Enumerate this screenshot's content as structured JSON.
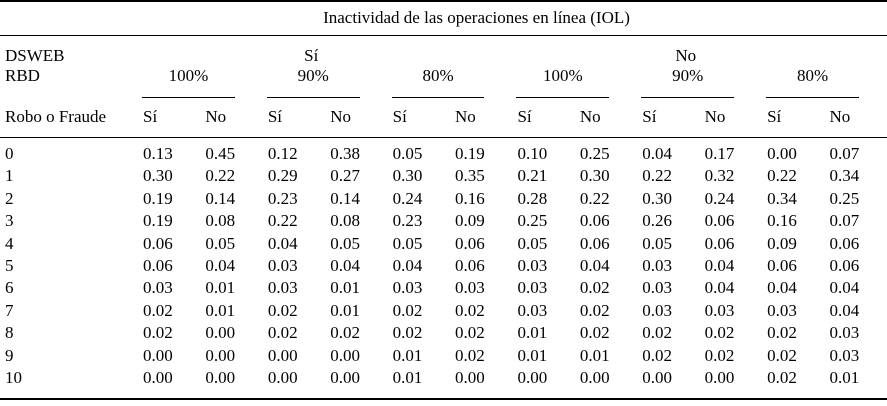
{
  "table": {
    "title": "Inactividad de las operaciones en línea (IOL)",
    "corner": {
      "line1": "DSWEB",
      "line2": "RBD",
      "line3": "Robo o Fraude"
    },
    "dsweb_groups": [
      "Sí",
      "No"
    ],
    "rbd_row": [
      "100%",
      "90%",
      "80%",
      "100%",
      "90%",
      "80%"
    ],
    "subheader_row": [
      "Sí",
      "No",
      "Sí",
      "No",
      "Sí",
      "No",
      "Sí",
      "No",
      "Sí",
      "No",
      "Sí",
      "No"
    ],
    "rows": [
      {
        "label": "0",
        "values": [
          "0.13",
          "0.45",
          "0.12",
          "0.38",
          "0.05",
          "0.19",
          "0.10",
          "0.25",
          "0.04",
          "0.17",
          "0.00",
          "0.07"
        ]
      },
      {
        "label": "1",
        "values": [
          "0.30",
          "0.22",
          "0.29",
          "0.27",
          "0.30",
          "0.35",
          "0.21",
          "0.30",
          "0.22",
          "0.32",
          "0.22",
          "0.34"
        ]
      },
      {
        "label": "2",
        "values": [
          "0.19",
          "0.14",
          "0.23",
          "0.14",
          "0.24",
          "0.16",
          "0.28",
          "0.22",
          "0.30",
          "0.24",
          "0.34",
          "0.25"
        ]
      },
      {
        "label": "3",
        "values": [
          "0.19",
          "0.08",
          "0.22",
          "0.08",
          "0.23",
          "0.09",
          "0.25",
          "0.06",
          "0.26",
          "0.06",
          "0.16",
          "0.07"
        ]
      },
      {
        "label": "4",
        "values": [
          "0.06",
          "0.05",
          "0.04",
          "0.05",
          "0.05",
          "0.06",
          "0.05",
          "0.06",
          "0.05",
          "0.06",
          "0.09",
          "0.06"
        ]
      },
      {
        "label": "5",
        "values": [
          "0.06",
          "0.04",
          "0.03",
          "0.04",
          "0.04",
          "0.06",
          "0.03",
          "0.04",
          "0.03",
          "0.04",
          "0.06",
          "0.06"
        ]
      },
      {
        "label": "6",
        "values": [
          "0.03",
          "0.01",
          "0.03",
          "0.01",
          "0.03",
          "0.03",
          "0.03",
          "0.02",
          "0.03",
          "0.04",
          "0.04",
          "0.04"
        ]
      },
      {
        "label": "7",
        "values": [
          "0.02",
          "0.01",
          "0.02",
          "0.01",
          "0.02",
          "0.02",
          "0.03",
          "0.02",
          "0.03",
          "0.03",
          "0.03",
          "0.04"
        ]
      },
      {
        "label": "8",
        "values": [
          "0.02",
          "0.00",
          "0.02",
          "0.02",
          "0.02",
          "0.02",
          "0.01",
          "0.02",
          "0.02",
          "0.02",
          "0.02",
          "0.03"
        ]
      },
      {
        "label": "9",
        "values": [
          "0.00",
          "0.00",
          "0.00",
          "0.00",
          "0.01",
          "0.02",
          "0.01",
          "0.01",
          "0.02",
          "0.02",
          "0.02",
          "0.03"
        ]
      },
      {
        "label": "10",
        "values": [
          "0.00",
          "0.00",
          "0.00",
          "0.00",
          "0.01",
          "0.00",
          "0.00",
          "0.00",
          "0.00",
          "0.00",
          "0.02",
          "0.01"
        ]
      }
    ]
  }
}
